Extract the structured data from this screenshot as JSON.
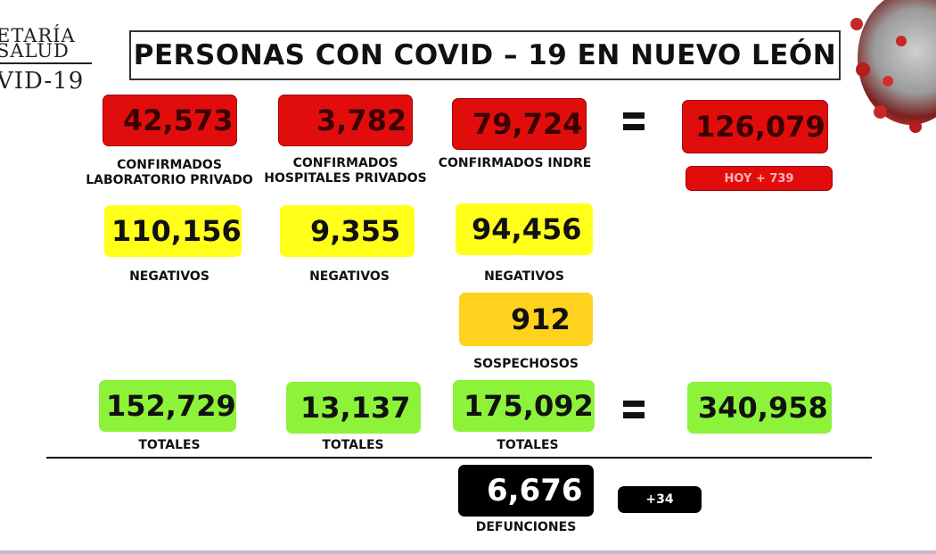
{
  "logo": {
    "line1": "ETARÍA",
    "line2": "SALUD",
    "line3": "VID-19"
  },
  "title": "PERSONAS CON COVID – 19 EN NUEVO LEÓN",
  "confirmados": {
    "privado": {
      "value": "42,573",
      "label1": "CONFIRMADOS",
      "label2": "LABORATORIO PRIVADO"
    },
    "hospitales": {
      "value": "3,782",
      "label1": "CONFIRMADOS",
      "label2": "HOSPITALES PRIVADOS"
    },
    "indre": {
      "value": "79,724",
      "label1": "CONFIRMADOS INDRE"
    },
    "total": {
      "value": "126,079"
    },
    "hoy": "HOY + 739"
  },
  "negativos": {
    "privado": {
      "value": "110,156",
      "label": "NEGATIVOS"
    },
    "hospitales": {
      "value": "9,355",
      "label": "NEGATIVOS"
    },
    "indre": {
      "value": "94,456",
      "label": "NEGATIVOS"
    }
  },
  "sospechosos": {
    "value": "912",
    "label": "SOSPECHOSOS"
  },
  "totales": {
    "privado": {
      "value": "152,729",
      "label": "TOTALES"
    },
    "hospitales": {
      "value": "13,137",
      "label": "TOTALES"
    },
    "indre": {
      "value": "175,092",
      "label": "TOTALES"
    },
    "total": {
      "value": "340,958"
    }
  },
  "defunciones": {
    "value": "6,676",
    "label": "DEFUNCIONES",
    "delta": "+34"
  },
  "colors": {
    "red": "#e10d0d",
    "yellow": "#ffff1a",
    "orange": "#ffd21e",
    "green": "#8cf23a",
    "black": "#000000"
  },
  "icons": {
    "decor": "coronavirus-icon"
  }
}
